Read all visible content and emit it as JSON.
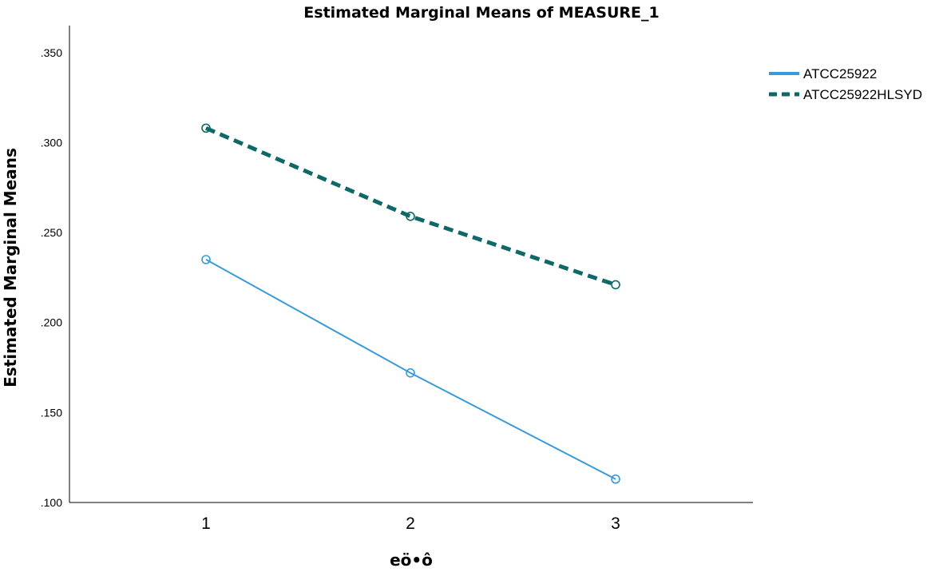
{
  "chart_data": {
    "type": "line",
    "title": "Estimated Marginal Means of MEASURE_1",
    "xlabel": "eö•ô",
    "ylabel": "Estimated Marginal Means",
    "categories": [
      "1",
      "2",
      "3"
    ],
    "ylim": [
      0.1,
      0.365
    ],
    "yticks": [
      0.1,
      0.15,
      0.2,
      0.25,
      0.3,
      0.35
    ],
    "ytick_labels": [
      ".100",
      ".150",
      ".200",
      ".250",
      ".300",
      ".350"
    ],
    "grid": false,
    "legend_position": "top-right",
    "series": [
      {
        "name": "ATCC25922",
        "values": [
          0.235,
          0.172,
          0.113
        ],
        "color": "#3a9ad9",
        "style": "solid"
      },
      {
        "name": "ATCC25922HLSYD",
        "values": [
          0.308,
          0.259,
          0.221
        ],
        "color": "#0f6868",
        "style": "dashed"
      }
    ]
  }
}
